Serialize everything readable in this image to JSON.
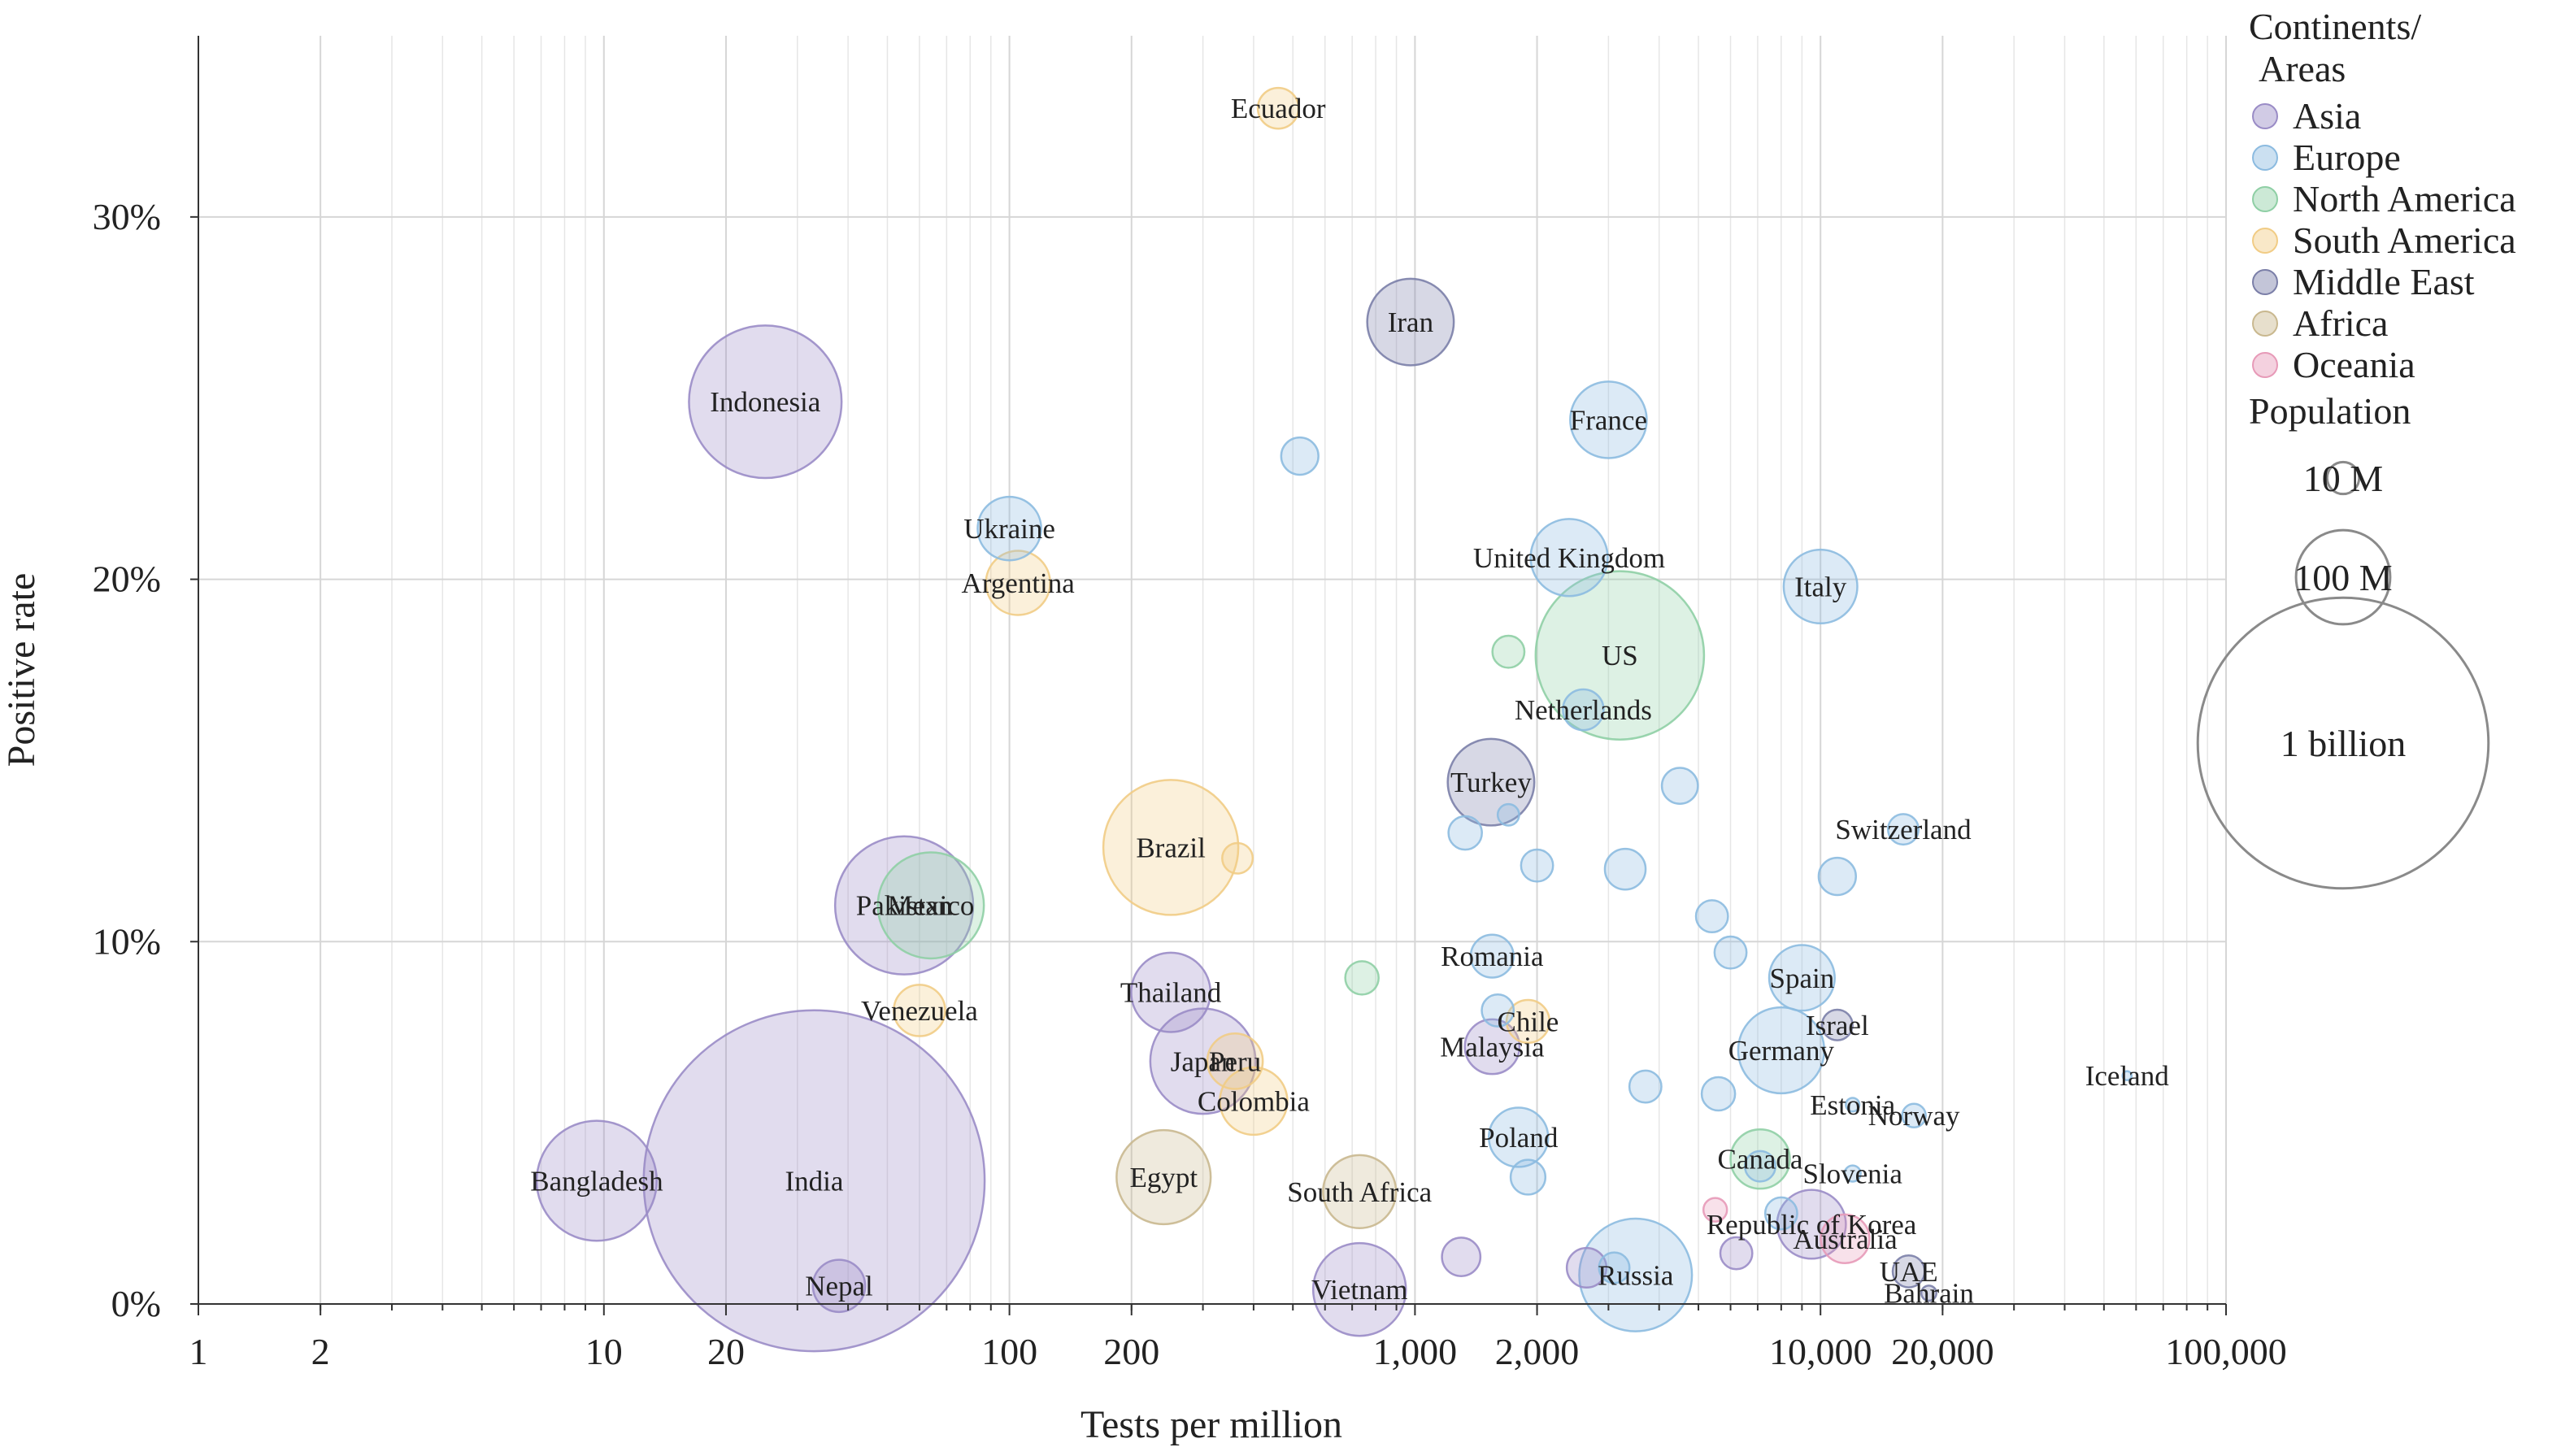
{
  "chart_data": {
    "type": "scatter",
    "xlabel": "Tests per million",
    "ylabel": "Positive rate",
    "x_scale": "log",
    "xlim": [
      1,
      100000
    ],
    "ylim": [
      0,
      0.35
    ],
    "x_ticks": [
      1,
      2,
      10,
      20,
      100,
      200,
      1000,
      2000,
      10000,
      20000,
      100000
    ],
    "x_tick_labels": [
      "1",
      "2",
      "10",
      "20",
      "100",
      "200",
      "1,000",
      "2,000",
      "10,000",
      "20,000",
      "100,000"
    ],
    "y_ticks": [
      0,
      0.1,
      0.2,
      0.3
    ],
    "y_tick_labels": [
      "0%",
      "10%",
      "20%",
      "30%"
    ],
    "grid": true,
    "legend": {
      "title": "Continents/\nAreas",
      "placement": "right",
      "entries": [
        {
          "name": "Asia",
          "color": "#9a8cc6"
        },
        {
          "name": "Europe",
          "color": "#8cbbe0"
        },
        {
          "name": "North America",
          "color": "#8fcfa5"
        },
        {
          "name": "South America",
          "color": "#f1cc85"
        },
        {
          "name": "Middle East",
          "color": "#7b7fa8"
        },
        {
          "name": "Africa",
          "color": "#c9b88f"
        },
        {
          "name": "Oceania",
          "color": "#e79ab8"
        }
      ]
    },
    "size_legend": {
      "title": "Population",
      "entries": [
        {
          "label": "10 M",
          "population_m": 10
        },
        {
          "label": "100 M",
          "population_m": 100
        },
        {
          "label": "1 billion",
          "population_m": 1000
        }
      ]
    },
    "points": [
      {
        "name": "Ecuador",
        "x": 460,
        "y": 0.33,
        "group": "South America",
        "pop": 17
      },
      {
        "name": "Iran",
        "x": 975,
        "y": 0.271,
        "group": "Middle East",
        "pop": 84
      },
      {
        "name": "Indonesia",
        "x": 25,
        "y": 0.249,
        "group": "Asia",
        "pop": 270
      },
      {
        "name": "France",
        "x": 3000,
        "y": 0.244,
        "group": "Europe",
        "pop": 65
      },
      {
        "name": "",
        "x": 520,
        "y": 0.234,
        "group": "Europe",
        "pop": 14
      },
      {
        "name": "Ukraine",
        "x": 100,
        "y": 0.214,
        "group": "Europe",
        "pop": 44
      },
      {
        "name": "United Kingdom",
        "x": 2400,
        "y": 0.206,
        "group": "Europe",
        "pop": 66
      },
      {
        "name": "Argentina",
        "x": 105,
        "y": 0.199,
        "group": "South America",
        "pop": 45
      },
      {
        "name": "Italy",
        "x": 10000,
        "y": 0.198,
        "group": "Europe",
        "pop": 60
      },
      {
        "name": "US",
        "x": 3200,
        "y": 0.179,
        "group": "North America",
        "pop": 330
      },
      {
        "name": "",
        "x": 1700,
        "y": 0.18,
        "group": "North America",
        "pop": 10
      },
      {
        "name": "Netherlands",
        "x": 2600,
        "y": 0.164,
        "group": "Europe",
        "pop": 17
      },
      {
        "name": "Turkey",
        "x": 1540,
        "y": 0.144,
        "group": "Middle East",
        "pop": 84
      },
      {
        "name": "",
        "x": 4500,
        "y": 0.143,
        "group": "Europe",
        "pop": 13
      },
      {
        "name": "",
        "x": 1700,
        "y": 0.135,
        "group": "Europe",
        "pop": 4
      },
      {
        "name": "Switzerland",
        "x": 16000,
        "y": 0.131,
        "group": "Europe",
        "pop": 9
      },
      {
        "name": "",
        "x": 1330,
        "y": 0.13,
        "group": "Europe",
        "pop": 11
      },
      {
        "name": "Brazil",
        "x": 250,
        "y": 0.126,
        "group": "South America",
        "pop": 210
      },
      {
        "name": "",
        "x": 365,
        "y": 0.123,
        "group": "South America",
        "pop": 9
      },
      {
        "name": "",
        "x": 2000,
        "y": 0.121,
        "group": "Europe",
        "pop": 10
      },
      {
        "name": "",
        "x": 3300,
        "y": 0.12,
        "group": "Europe",
        "pop": 17
      },
      {
        "name": "",
        "x": 11000,
        "y": 0.118,
        "group": "Europe",
        "pop": 14
      },
      {
        "name": "Pakistan",
        "x": 55,
        "y": 0.11,
        "group": "Asia",
        "pop": 220
      },
      {
        "name": "Mexico",
        "x": 64,
        "y": 0.11,
        "group": "North America",
        "pop": 128
      },
      {
        "name": "",
        "x": 5400,
        "y": 0.107,
        "group": "Europe",
        "pop": 10
      },
      {
        "name": "",
        "x": 6000,
        "y": 0.097,
        "group": "Europe",
        "pop": 10
      },
      {
        "name": "Romania",
        "x": 1550,
        "y": 0.096,
        "group": "Europe",
        "pop": 19
      },
      {
        "name": "",
        "x": 740,
        "y": 0.09,
        "group": "North America",
        "pop": 11
      },
      {
        "name": "Spain",
        "x": 9000,
        "y": 0.09,
        "group": "Europe",
        "pop": 47
      },
      {
        "name": "Thailand",
        "x": 250,
        "y": 0.086,
        "group": "Asia",
        "pop": 70
      },
      {
        "name": "Venezuela",
        "x": 60,
        "y": 0.081,
        "group": "South America",
        "pop": 28
      },
      {
        "name": "",
        "x": 1600,
        "y": 0.081,
        "group": "Europe",
        "pop": 10
      },
      {
        "name": "Chile",
        "x": 1900,
        "y": 0.078,
        "group": "South America",
        "pop": 19
      },
      {
        "name": "Israel",
        "x": 11000,
        "y": 0.077,
        "group": "Middle East",
        "pop": 9
      },
      {
        "name": "Malaysia",
        "x": 1550,
        "y": 0.071,
        "group": "Asia",
        "pop": 32
      },
      {
        "name": "Germany",
        "x": 8000,
        "y": 0.07,
        "group": "Europe",
        "pop": 83
      },
      {
        "name": "Peru",
        "x": 360,
        "y": 0.067,
        "group": "South America",
        "pop": 33
      },
      {
        "name": "Japan",
        "x": 300,
        "y": 0.067,
        "group": "Asia",
        "pop": 126
      },
      {
        "name": "Iceland",
        "x": 57000,
        "y": 0.063,
        "group": "Europe",
        "pop": 0.4
      },
      {
        "name": "",
        "x": 3700,
        "y": 0.06,
        "group": "Europe",
        "pop": 10
      },
      {
        "name": "",
        "x": 5600,
        "y": 0.058,
        "group": "Europe",
        "pop": 11
      },
      {
        "name": "Colombia",
        "x": 400,
        "y": 0.056,
        "group": "South America",
        "pop": 50
      },
      {
        "name": "Estonia",
        "x": 12000,
        "y": 0.055,
        "group": "Europe",
        "pop": 1.3
      },
      {
        "name": "Norway",
        "x": 17000,
        "y": 0.052,
        "group": "Europe",
        "pop": 5
      },
      {
        "name": "Poland",
        "x": 1800,
        "y": 0.046,
        "group": "Europe",
        "pop": 38
      },
      {
        "name": "Canada",
        "x": 7100,
        "y": 0.04,
        "group": "North America",
        "pop": 38
      },
      {
        "name": "",
        "x": 7100,
        "y": 0.038,
        "group": "Europe",
        "pop": 9
      },
      {
        "name": "Slovenia",
        "x": 12000,
        "y": 0.036,
        "group": "Europe",
        "pop": 2
      },
      {
        "name": "Egypt",
        "x": 240,
        "y": 0.035,
        "group": "Africa",
        "pop": 100
      },
      {
        "name": "",
        "x": 1900,
        "y": 0.035,
        "group": "Europe",
        "pop": 12
      },
      {
        "name": "Bangladesh",
        "x": 9.6,
        "y": 0.034,
        "group": "Asia",
        "pop": 165
      },
      {
        "name": "India",
        "x": 33,
        "y": 0.034,
        "group": "Asia",
        "pop": 1380
      },
      {
        "name": "South Africa",
        "x": 730,
        "y": 0.031,
        "group": "Africa",
        "pop": 59
      },
      {
        "name": "",
        "x": 5500,
        "y": 0.026,
        "group": "Oceania",
        "pop": 5
      },
      {
        "name": "",
        "x": 8000,
        "y": 0.025,
        "group": "Europe",
        "pop": 10
      },
      {
        "name": "Republic of Korea",
        "x": 9500,
        "y": 0.022,
        "group": "Asia",
        "pop": 52
      },
      {
        "name": "Australia",
        "x": 11500,
        "y": 0.018,
        "group": "Oceania",
        "pop": 25
      },
      {
        "name": "",
        "x": 6200,
        "y": 0.014,
        "group": "Asia",
        "pop": 10
      },
      {
        "name": "",
        "x": 1300,
        "y": 0.013,
        "group": "Asia",
        "pop": 15
      },
      {
        "name": "UAE",
        "x": 16500,
        "y": 0.009,
        "group": "Middle East",
        "pop": 10
      },
      {
        "name": "",
        "x": 2650,
        "y": 0.01,
        "group": "Asia",
        "pop": 16
      },
      {
        "name": "",
        "x": 3100,
        "y": 0.01,
        "group": "Europe",
        "pop": 9
      },
      {
        "name": "Russia",
        "x": 3500,
        "y": 0.008,
        "group": "Europe",
        "pop": 145
      },
      {
        "name": "Nepal",
        "x": 38,
        "y": 0.005,
        "group": "Asia",
        "pop": 29
      },
      {
        "name": "Vietnam",
        "x": 730,
        "y": 0.004,
        "group": "Asia",
        "pop": 97
      },
      {
        "name": "Bahrain",
        "x": 18500,
        "y": 0.003,
        "group": "Middle East",
        "pop": 1.7
      }
    ]
  }
}
